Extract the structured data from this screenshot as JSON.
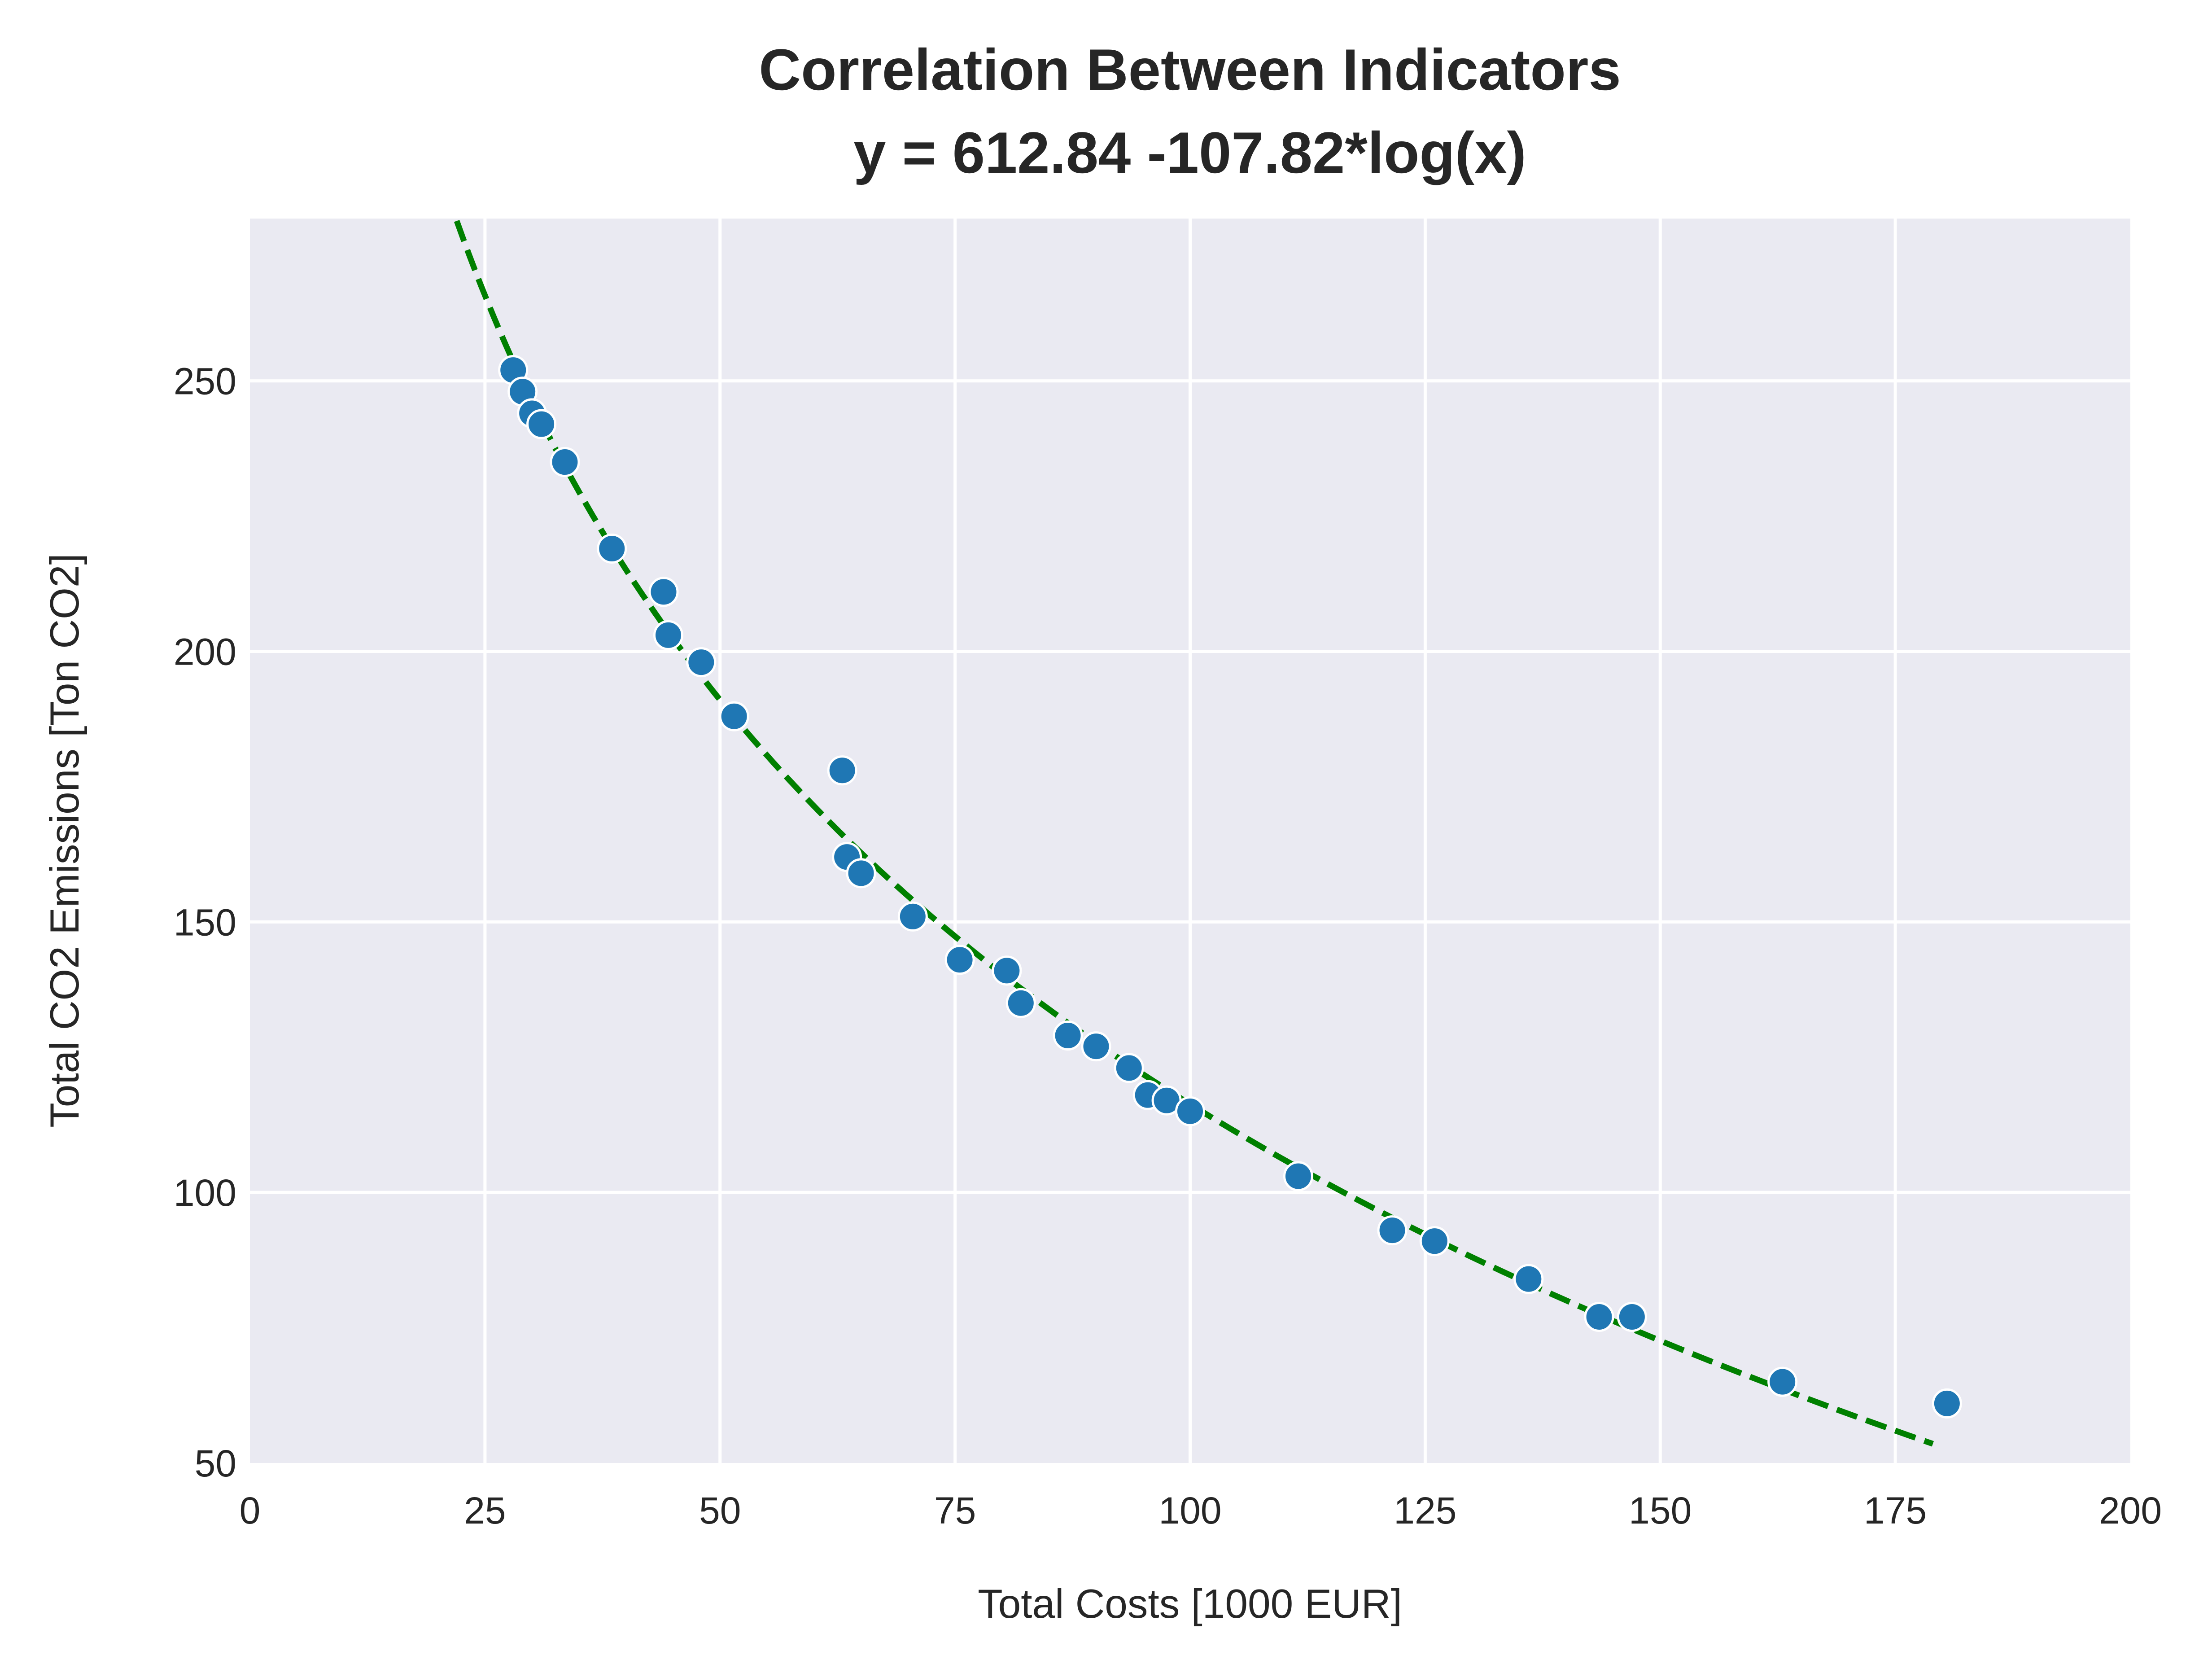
{
  "chart_data": {
    "type": "scatter",
    "title": "Correlation Between Indicators",
    "subtitle": "y = 612.84 -107.82*log(x)",
    "xlabel": "Total Costs [1000 EUR]",
    "ylabel": "Total CO2 Emissions [Ton CO2]",
    "xlim": [
      0,
      200
    ],
    "ylim": [
      50,
      280
    ],
    "xticks": [
      0,
      25,
      50,
      75,
      100,
      125,
      150,
      175,
      200
    ],
    "xtick_labels": [
      "0",
      "25",
      "50",
      "75",
      "100",
      "125",
      "150",
      "175",
      "200"
    ],
    "yticks": [
      50,
      100,
      150,
      200,
      250
    ],
    "ytick_labels": [
      "50",
      "100",
      "150",
      "200",
      "250"
    ],
    "grid": true,
    "background": "#eaeaf2",
    "points": [
      {
        "x": 28.0,
        "y": 252
      },
      {
        "x": 29.0,
        "y": 248
      },
      {
        "x": 30.0,
        "y": 244
      },
      {
        "x": 31.0,
        "y": 242
      },
      {
        "x": 33.5,
        "y": 235
      },
      {
        "x": 38.5,
        "y": 219
      },
      {
        "x": 44.0,
        "y": 211
      },
      {
        "x": 44.5,
        "y": 203
      },
      {
        "x": 48.0,
        "y": 198
      },
      {
        "x": 51.5,
        "y": 188
      },
      {
        "x": 63.0,
        "y": 178
      },
      {
        "x": 63.5,
        "y": 162
      },
      {
        "x": 65.0,
        "y": 159
      },
      {
        "x": 70.5,
        "y": 151
      },
      {
        "x": 75.5,
        "y": 143
      },
      {
        "x": 80.5,
        "y": 141
      },
      {
        "x": 82.0,
        "y": 135
      },
      {
        "x": 87.0,
        "y": 129
      },
      {
        "x": 90.0,
        "y": 127
      },
      {
        "x": 93.5,
        "y": 123
      },
      {
        "x": 95.5,
        "y": 118
      },
      {
        "x": 97.5,
        "y": 117
      },
      {
        "x": 100.0,
        "y": 115
      },
      {
        "x": 111.5,
        "y": 103
      },
      {
        "x": 121.5,
        "y": 93
      },
      {
        "x": 126.0,
        "y": 91
      },
      {
        "x": 136.0,
        "y": 84
      },
      {
        "x": 143.5,
        "y": 77
      },
      {
        "x": 147.0,
        "y": 77
      },
      {
        "x": 163.0,
        "y": 65
      },
      {
        "x": 180.5,
        "y": 61
      }
    ],
    "point_color": "#1f77b4",
    "fit": {
      "intercept": 612.84,
      "slope": -107.82,
      "x_range": [
        22,
        179
      ],
      "color": "#008000",
      "style": "dashed"
    }
  }
}
